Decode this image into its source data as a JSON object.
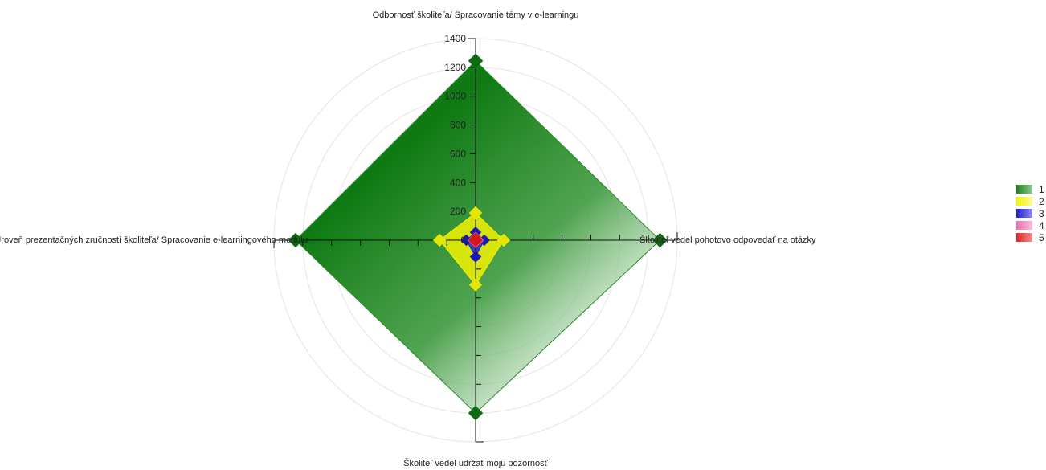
{
  "chart_data": {
    "type": "radar",
    "axes": [
      "Odbornosť školiteľa/ Spracovanie témy v e-learningu",
      "Školiteľ vedel pohotovo odpovedať na otázky",
      "Školiteľ vedel udržať moju pozornosť",
      "Úroveň prezentačných zručností školiteľa/ Spracovanie e-learningového modulu"
    ],
    "ticks": [
      0,
      200,
      400,
      600,
      800,
      1000,
      1200,
      1400
    ],
    "tick_labels": [
      "0",
      "200",
      "400",
      "600",
      "800",
      "1000",
      "1200",
      "1400"
    ],
    "rmax": 1400,
    "grid": true,
    "legend_position": "right",
    "series": [
      {
        "name": "1",
        "values": [
          1245,
          1280,
          1200,
          1250
        ],
        "color": "#1e7f1e"
      },
      {
        "name": "2",
        "values": [
          190,
          195,
          310,
          250
        ],
        "color": "#f2f200"
      },
      {
        "name": "3",
        "values": [
          55,
          60,
          115,
          65
        ],
        "color": "#2222cc"
      },
      {
        "name": "4",
        "values": [
          30,
          30,
          25,
          28
        ],
        "color": "#f06eb0"
      },
      {
        "name": "5",
        "values": [
          25,
          20,
          18,
          22
        ],
        "color": "#e02020"
      }
    ]
  }
}
